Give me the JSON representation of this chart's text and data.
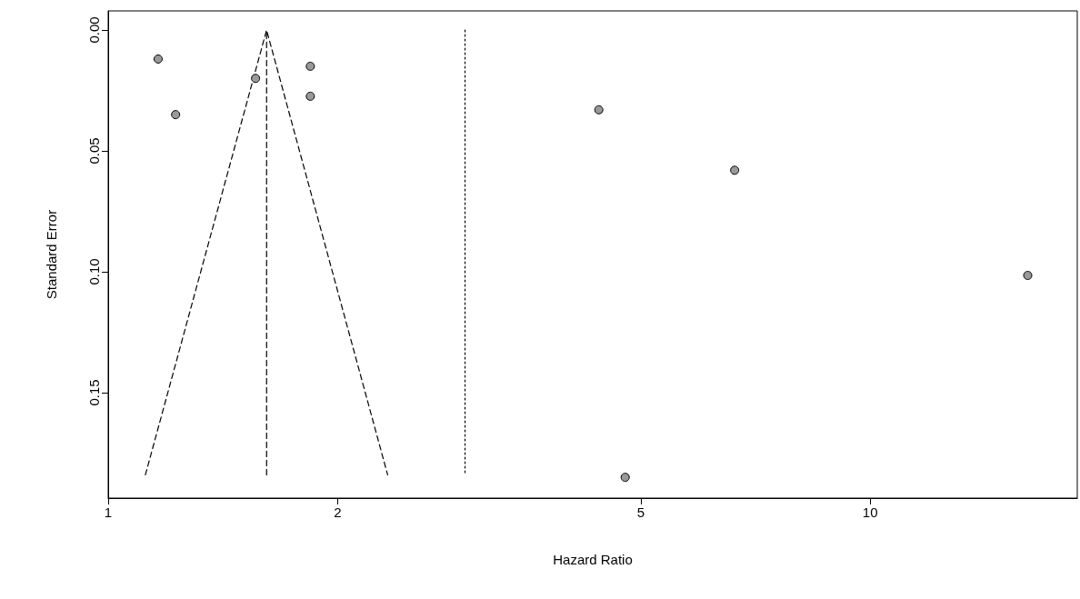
{
  "chart_data": {
    "type": "scatter",
    "xlabel": "Hazard Ratio",
    "ylabel": "Standard Error",
    "log": "x",
    "xlim": [
      1,
      18.7
    ],
    "xticks": [
      1,
      2,
      5,
      10
    ],
    "ylim": [
      0.1936,
      -0.0079
    ],
    "yticks": [
      {
        "value": 0,
        "label": "0.00"
      },
      {
        "value": 0.05,
        "label": "0.05"
      },
      {
        "value": 0.1,
        "label": "0.10"
      },
      {
        "value": 0.15,
        "label": "0.15"
      }
    ],
    "series": [
      {
        "type": "line",
        "line_style": "dashed",
        "color": "#000000",
        "x": [
          1.119,
          1.614,
          2.327
        ],
        "values": [
          0.184,
          0,
          0.184
        ]
      },
      {
        "type": "line",
        "line_style": "dashed",
        "color": "#000000",
        "x": [
          1.614,
          1.614
        ],
        "values": [
          0.184,
          0
        ]
      },
      {
        "type": "line",
        "line_style": "dotted",
        "color": "#000000",
        "x": [
          2.94,
          2.94
        ],
        "values": [
          0,
          0.184
        ]
      },
      {
        "marker": "circle",
        "color": "#999999",
        "x": [
          1.163,
          1.226,
          1.561,
          1.842,
          1.842,
          4.405,
          6.64,
          16.1,
          4.77
        ],
        "values": [
          0.012,
          0.035,
          0.02,
          0.015,
          0.0274,
          0.033,
          0.058,
          0.1015,
          0.185
        ]
      }
    ]
  }
}
